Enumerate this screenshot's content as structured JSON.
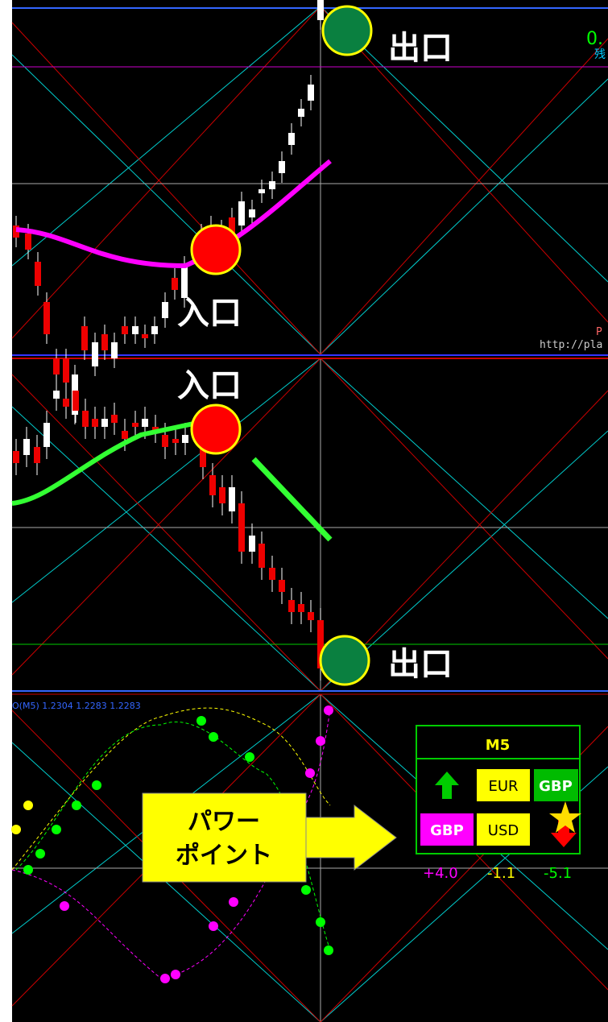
{
  "top_panel": {
    "exit_label": "出口",
    "entry_label": "入口",
    "corner_value": "0.",
    "corner_text": "残",
    "watermark_p": "P",
    "watermark_url": "http://pla"
  },
  "middle_panel": {
    "entry_label": "入口",
    "exit_label": "出口"
  },
  "bottom_panel": {
    "indicator_text": "O(M5) 1.2304 1.2283 1.2283",
    "strength_box": {
      "title": "M5",
      "top_row": [
        "EUR",
        "GBP"
      ],
      "bottom_row": [
        "GBP",
        "USD"
      ],
      "scores": [
        "+4.0",
        "-1.1",
        "-5.1"
      ]
    },
    "callout": [
      "パワー",
      "ポイント"
    ]
  }
}
